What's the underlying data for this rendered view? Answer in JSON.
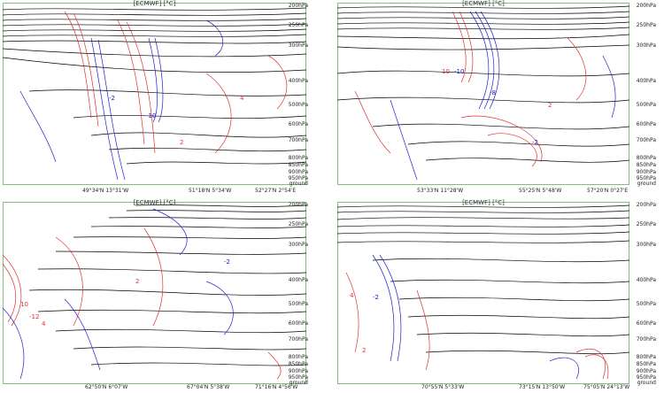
{
  "title": "[ECMWF] [°C]",
  "pressure_levels": [
    "200hPa",
    "250hPa",
    "300hPa",
    "400hPa",
    "500hPa",
    "600hPa",
    "700hPa",
    "800hPa",
    "850hPa",
    "900hPa",
    "950hPa",
    "ground"
  ],
  "colors": {
    "frame": "#7fbf7f",
    "isotherm": "#000000",
    "positive": "#e03030",
    "negative": "#2020d0"
  },
  "panels": [
    {
      "id": "p1",
      "coords": [
        "49°34'N 13°31'W",
        "51°18'N 5°34'W",
        "52°27'N 2°54'E"
      ],
      "labels": [
        "-10",
        "2",
        "-2",
        "4"
      ]
    },
    {
      "id": "p2",
      "coords": [
        "53°33'N 11°28'W",
        "55°25'N 5°48'W",
        "57°20'N 0°27'E"
      ],
      "labels": [
        "-10",
        "10",
        "-8",
        "-2",
        "2"
      ]
    },
    {
      "id": "p3",
      "coords": [
        "62°50'N 6°07'W",
        "67°04'N 5°38'W",
        "71°16'N 4°56'W"
      ],
      "labels": [
        "10",
        "-12",
        "2",
        "-2",
        "4"
      ]
    },
    {
      "id": "p4",
      "coords": [
        "70°55'N 5°33'W",
        "73°15'N 13°50'W",
        "75°05'N 24°13'W"
      ],
      "labels": [
        "4",
        "-2",
        "2"
      ]
    }
  ]
}
